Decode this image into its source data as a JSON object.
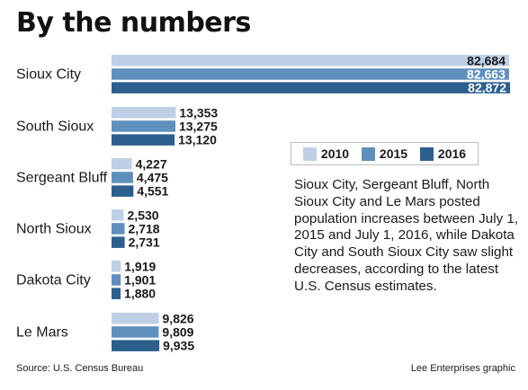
{
  "title": "By the numbers",
  "source": "Source:  U.S. Census Bureau",
  "credit": "Lee Enterprises graphic",
  "note": "Sioux City, Sergeant Bluff, North Sioux City and Le Mars posted population increases between July 1, 2015 and July 1, 2016, while Dakota City and South Sioux City saw slight decreases, according to the latest U.S. Census estimates.",
  "colors": {
    "2010": "#bfd0e6",
    "2015": "#5f8fbd",
    "2016": "#2c5f8e"
  },
  "chart_data": {
    "type": "bar",
    "orientation": "horizontal",
    "title": "By the numbers",
    "categories": [
      "Sioux City",
      "South Sioux",
      "Sergeant Bluff",
      "North Sioux",
      "Dakota City",
      "Le Mars"
    ],
    "series": [
      {
        "name": "2010",
        "values": [
          82684,
          13353,
          4227,
          2530,
          1919,
          9826
        ]
      },
      {
        "name": "2015",
        "values": [
          82663,
          13275,
          4475,
          2718,
          1901,
          9809
        ]
      },
      {
        "name": "2016",
        "values": [
          82872,
          13120,
          4551,
          2731,
          1880,
          9935
        ]
      }
    ],
    "value_labels": [
      [
        "82,684",
        "13,353",
        "4,227",
        "2,530",
        "1,919",
        "9,826"
      ],
      [
        "82,663",
        "13,275",
        "4,475",
        "2,718",
        "1,901",
        "9,809"
      ],
      [
        "82,872",
        "13,120",
        "4,551",
        "2,731",
        "1,880",
        "9,935"
      ]
    ],
    "legend_position": "right"
  }
}
